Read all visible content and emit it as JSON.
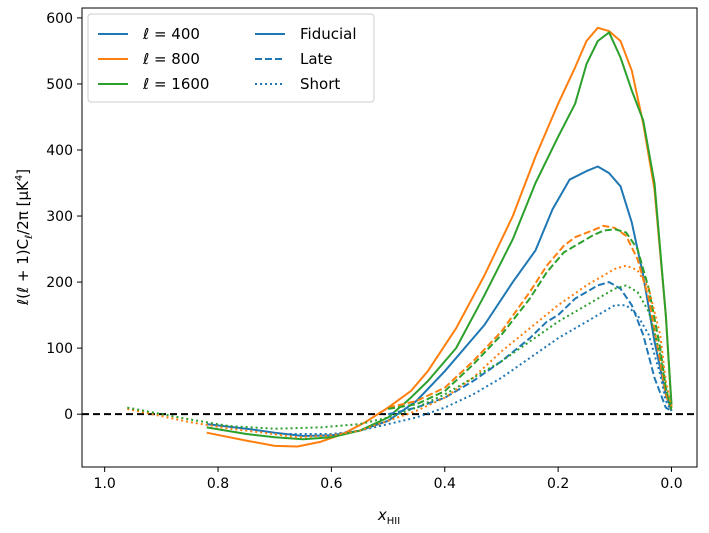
{
  "chart_data": {
    "type": "line",
    "title": "",
    "xlabel": "x",
    "xlabel_sub": "HII",
    "ylabel": "ℓ(ℓ + 1)C",
    "ylabel_sub": "ℓ",
    "ylabel_tail": "/2π [μK",
    "ylabel_sup": "4",
    "ylabel_end": "]",
    "xlim": [
      1.04,
      -0.045
    ],
    "ylim": [
      -80,
      615
    ],
    "xticks": [
      1.0,
      0.8,
      0.6,
      0.4,
      0.2,
      0.0
    ],
    "xtick_labels": [
      "1.0",
      "0.8",
      "0.6",
      "0.4",
      "0.2",
      "0.0"
    ],
    "yticks": [
      0,
      100,
      200,
      300,
      400,
      500,
      600
    ],
    "ytick_labels": [
      "0",
      "100",
      "200",
      "300",
      "400",
      "500",
      "600"
    ],
    "reference_line": {
      "y": 0,
      "style": "dashed",
      "color": "#000000"
    },
    "legend": {
      "placement": "top-left",
      "colors": [
        {
          "label": "ℓ = 400",
          "color": "#1f77b4"
        },
        {
          "label": "ℓ = 800",
          "color": "#ff7f0e"
        },
        {
          "label": "ℓ = 1600",
          "color": "#2ca02c"
        }
      ],
      "styles": [
        {
          "label": "Fiducial",
          "dash": "solid",
          "color": "#1f77b4"
        },
        {
          "label": "Late",
          "dash": "dashed",
          "color": "#1f77b4"
        },
        {
          "label": "Short",
          "dash": "dotted",
          "color": "#1f77b4"
        }
      ]
    },
    "series": [
      {
        "name": "ℓ=400 Fiducial",
        "color": "#1f77b4",
        "dash": "solid",
        "x": [
          0.82,
          0.75,
          0.7,
          0.65,
          0.6,
          0.55,
          0.5,
          0.45,
          0.4,
          0.33,
          0.28,
          0.24,
          0.21,
          0.18,
          0.15,
          0.13,
          0.11,
          0.09,
          0.07,
          0.05,
          0.03,
          0.01,
          0.0
        ],
        "y": [
          -15,
          -22,
          -28,
          -33,
          -32,
          -25,
          -10,
          20,
          65,
          135,
          200,
          248,
          310,
          355,
          368,
          375,
          365,
          345,
          290,
          210,
          110,
          30,
          5
        ]
      },
      {
        "name": "ℓ=800 Fiducial",
        "color": "#ff7f0e",
        "dash": "solid",
        "x": [
          0.82,
          0.75,
          0.7,
          0.66,
          0.62,
          0.58,
          0.54,
          0.5,
          0.46,
          0.43,
          0.38,
          0.33,
          0.28,
          0.24,
          0.2,
          0.17,
          0.15,
          0.13,
          0.11,
          0.09,
          0.07,
          0.05,
          0.03,
          0.01,
          0.0
        ],
        "y": [
          -28,
          -40,
          -48,
          -49,
          -42,
          -30,
          -12,
          10,
          35,
          65,
          130,
          210,
          300,
          390,
          470,
          525,
          565,
          585,
          580,
          565,
          520,
          440,
          340,
          150,
          10
        ]
      },
      {
        "name": "ℓ=1600 Fiducial",
        "color": "#2ca02c",
        "dash": "solid",
        "x": [
          0.82,
          0.75,
          0.7,
          0.65,
          0.6,
          0.55,
          0.5,
          0.46,
          0.43,
          0.38,
          0.33,
          0.28,
          0.24,
          0.2,
          0.17,
          0.15,
          0.13,
          0.11,
          0.09,
          0.07,
          0.05,
          0.03,
          0.01,
          0.0
        ],
        "y": [
          -20,
          -30,
          -35,
          -38,
          -35,
          -25,
          -5,
          25,
          50,
          100,
          180,
          265,
          350,
          420,
          470,
          530,
          565,
          578,
          540,
          490,
          445,
          350,
          150,
          15
        ]
      },
      {
        "name": "ℓ=400 Late",
        "color": "#1f77b4",
        "dash": "dashed",
        "x": [
          0.5,
          0.45,
          0.4,
          0.35,
          0.3,
          0.25,
          0.22,
          0.2,
          0.17,
          0.15,
          0.13,
          0.11,
          0.09,
          0.07,
          0.05,
          0.03,
          0.01,
          0.0
        ],
        "y": [
          0,
          10,
          25,
          50,
          80,
          115,
          140,
          150,
          175,
          185,
          195,
          200,
          190,
          165,
          120,
          55,
          10,
          5
        ]
      },
      {
        "name": "ℓ=800 Late",
        "color": "#ff7f0e",
        "dash": "dashed",
        "x": [
          0.5,
          0.45,
          0.4,
          0.35,
          0.3,
          0.25,
          0.22,
          0.19,
          0.17,
          0.14,
          0.12,
          0.1,
          0.08,
          0.06,
          0.04,
          0.02,
          0.01,
          0.0
        ],
        "y": [
          10,
          20,
          40,
          80,
          125,
          185,
          225,
          255,
          268,
          278,
          285,
          282,
          270,
          235,
          175,
          80,
          30,
          5
        ]
      },
      {
        "name": "ℓ=1600 Late",
        "color": "#2ca02c",
        "dash": "dashed",
        "x": [
          0.5,
          0.45,
          0.4,
          0.35,
          0.3,
          0.25,
          0.22,
          0.19,
          0.17,
          0.14,
          0.12,
          0.1,
          0.08,
          0.06,
          0.04,
          0.02,
          0.01,
          0.0
        ],
        "y": [
          8,
          15,
          35,
          75,
          120,
          175,
          215,
          245,
          255,
          270,
          278,
          280,
          275,
          250,
          190,
          100,
          40,
          5
        ]
      },
      {
        "name": "ℓ=400 Short",
        "color": "#1f77b4",
        "dash": "dotted",
        "x": [
          0.7,
          0.6,
          0.55,
          0.5,
          0.45,
          0.4,
          0.35,
          0.3,
          0.25,
          0.2,
          0.15,
          0.12,
          0.1,
          0.08,
          0.06,
          0.04,
          0.02,
          0.01,
          0.0
        ],
        "y": [
          -30,
          -30,
          -25,
          -15,
          -5,
          10,
          30,
          55,
          85,
          115,
          140,
          155,
          165,
          165,
          150,
          120,
          60,
          20,
          5
        ]
      },
      {
        "name": "ℓ=800 Short",
        "color": "#ff7f0e",
        "dash": "dotted",
        "x": [
          0.96,
          0.85,
          0.78,
          0.72,
          0.66,
          0.6,
          0.55,
          0.5,
          0.45,
          0.4,
          0.35,
          0.3,
          0.25,
          0.2,
          0.15,
          0.12,
          0.1,
          0.08,
          0.06,
          0.04,
          0.02,
          0.01,
          0.0
        ],
        "y": [
          8,
          -12,
          -22,
          -28,
          -35,
          -32,
          -25,
          -10,
          5,
          25,
          55,
          95,
          130,
          165,
          195,
          210,
          220,
          225,
          218,
          190,
          120,
          50,
          10
        ]
      },
      {
        "name": "ℓ=1600 Short",
        "color": "#2ca02c",
        "dash": "dotted",
        "x": [
          0.96,
          0.85,
          0.78,
          0.7,
          0.62,
          0.55,
          0.5,
          0.45,
          0.4,
          0.35,
          0.3,
          0.25,
          0.2,
          0.16,
          0.13,
          0.1,
          0.08,
          0.06,
          0.04,
          0.02,
          0.01,
          0.0
        ],
        "y": [
          10,
          -8,
          -18,
          -22,
          -20,
          -15,
          -5,
          10,
          30,
          55,
          80,
          110,
          140,
          160,
          175,
          190,
          195,
          185,
          155,
          90,
          40,
          8
        ]
      }
    ]
  }
}
